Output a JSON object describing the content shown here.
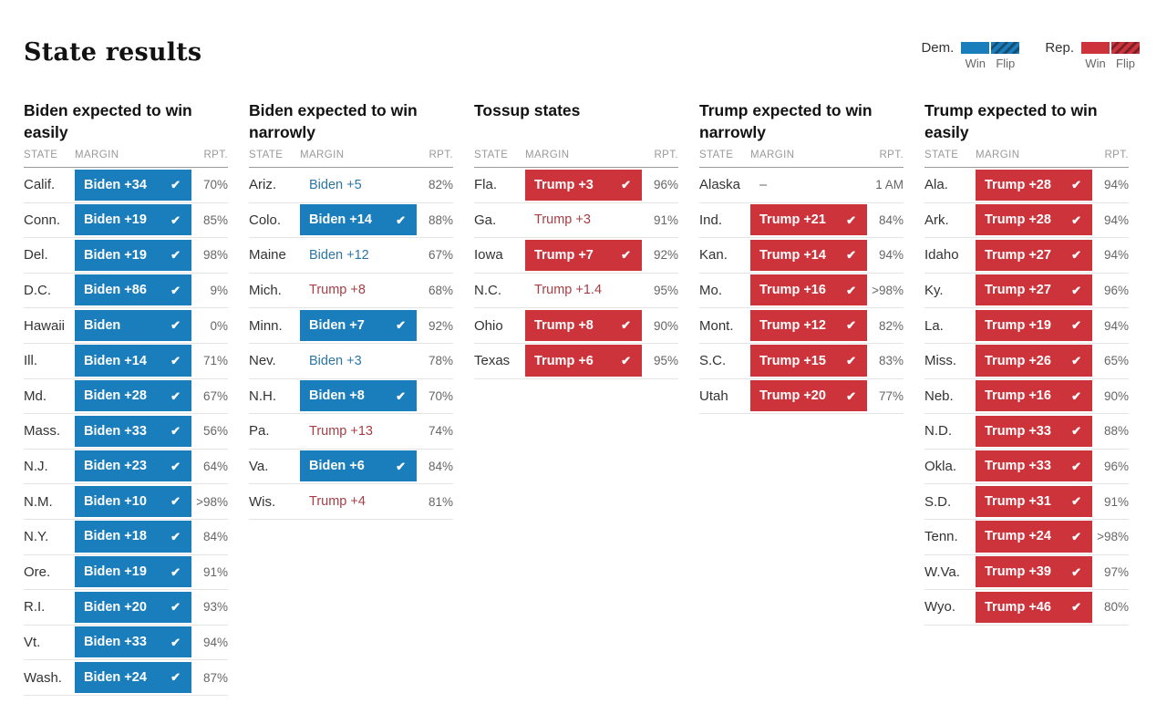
{
  "page_title": "State results",
  "legend": {
    "dem": {
      "label": "Dem.",
      "win": "Win",
      "flip": "Flip"
    },
    "rep": {
      "label": "Rep.",
      "win": "Win",
      "flip": "Flip"
    }
  },
  "colors": {
    "dem_fill": "#1a7dbc",
    "dem_text": "#2d76a4",
    "dem_flip_stripe": "#174e73",
    "rep_fill": "#cd333b",
    "rep_text": "#a63d45",
    "rep_flip_stripe": "#7d2027"
  },
  "table_headers": {
    "state": "STATE",
    "margin": "MARGIN",
    "rpt": "RPT."
  },
  "check_icon": "✔",
  "groups": [
    {
      "title": "Biden expected to win easily",
      "rows": [
        {
          "state": "Calif.",
          "margin": "Biden +34",
          "party": "dem",
          "called": true,
          "rpt": "70%"
        },
        {
          "state": "Conn.",
          "margin": "Biden +19",
          "party": "dem",
          "called": true,
          "rpt": "85%"
        },
        {
          "state": "Del.",
          "margin": "Biden +19",
          "party": "dem",
          "called": true,
          "rpt": "98%"
        },
        {
          "state": "D.C.",
          "margin": "Biden +86",
          "party": "dem",
          "called": true,
          "rpt": "9%"
        },
        {
          "state": "Hawaii",
          "margin": "Biden",
          "party": "dem",
          "called": true,
          "rpt": "0%"
        },
        {
          "state": "Ill.",
          "margin": "Biden +14",
          "party": "dem",
          "called": true,
          "rpt": "71%"
        },
        {
          "state": "Md.",
          "margin": "Biden +28",
          "party": "dem",
          "called": true,
          "rpt": "67%"
        },
        {
          "state": "Mass.",
          "margin": "Biden +33",
          "party": "dem",
          "called": true,
          "rpt": "56%"
        },
        {
          "state": "N.J.",
          "margin": "Biden +23",
          "party": "dem",
          "called": true,
          "rpt": "64%"
        },
        {
          "state": "N.M.",
          "margin": "Biden +10",
          "party": "dem",
          "called": true,
          "rpt": ">98%"
        },
        {
          "state": "N.Y.",
          "margin": "Biden +18",
          "party": "dem",
          "called": true,
          "rpt": "84%"
        },
        {
          "state": "Ore.",
          "margin": "Biden +19",
          "party": "dem",
          "called": true,
          "rpt": "91%"
        },
        {
          "state": "R.I.",
          "margin": "Biden +20",
          "party": "dem",
          "called": true,
          "rpt": "93%"
        },
        {
          "state": "Vt.",
          "margin": "Biden +33",
          "party": "dem",
          "called": true,
          "rpt": "94%"
        },
        {
          "state": "Wash.",
          "margin": "Biden +24",
          "party": "dem",
          "called": true,
          "rpt": "87%"
        }
      ]
    },
    {
      "title": "Biden expected to win narrowly",
      "rows": [
        {
          "state": "Ariz.",
          "margin": "Biden +5",
          "party": "dem",
          "called": false,
          "rpt": "82%"
        },
        {
          "state": "Colo.",
          "margin": "Biden +14",
          "party": "dem",
          "called": true,
          "rpt": "88%"
        },
        {
          "state": "Maine",
          "margin": "Biden +12",
          "party": "dem",
          "called": false,
          "rpt": "67%"
        },
        {
          "state": "Mich.",
          "margin": "Trump +8",
          "party": "rep",
          "called": false,
          "rpt": "68%"
        },
        {
          "state": "Minn.",
          "margin": "Biden +7",
          "party": "dem",
          "called": true,
          "rpt": "92%"
        },
        {
          "state": "Nev.",
          "margin": "Biden +3",
          "party": "dem",
          "called": false,
          "rpt": "78%"
        },
        {
          "state": "N.H.",
          "margin": "Biden +8",
          "party": "dem",
          "called": true,
          "rpt": "70%"
        },
        {
          "state": "Pa.",
          "margin": "Trump +13",
          "party": "rep",
          "called": false,
          "rpt": "74%"
        },
        {
          "state": "Va.",
          "margin": "Biden +6",
          "party": "dem",
          "called": true,
          "rpt": "84%"
        },
        {
          "state": "Wis.",
          "margin": "Trump +4",
          "party": "rep",
          "called": false,
          "rpt": "81%"
        }
      ]
    },
    {
      "title": "Tossup states",
      "rows": [
        {
          "state": "Fla.",
          "margin": "Trump +3",
          "party": "rep",
          "called": true,
          "rpt": "96%"
        },
        {
          "state": "Ga.",
          "margin": "Trump +3",
          "party": "rep",
          "called": false,
          "rpt": "91%"
        },
        {
          "state": "Iowa",
          "margin": "Trump +7",
          "party": "rep",
          "called": true,
          "rpt": "92%"
        },
        {
          "state": "N.C.",
          "margin": "Trump +1.4",
          "party": "rep",
          "called": false,
          "rpt": "95%"
        },
        {
          "state": "Ohio",
          "margin": "Trump +8",
          "party": "rep",
          "called": true,
          "rpt": "90%"
        },
        {
          "state": "Texas",
          "margin": "Trump +6",
          "party": "rep",
          "called": true,
          "rpt": "95%"
        }
      ]
    },
    {
      "title": "Trump expected to win narrowly",
      "rows": [
        {
          "state": "Alaska",
          "margin": "–",
          "party": "none",
          "called": false,
          "rpt": "1 AM"
        },
        {
          "state": "Ind.",
          "margin": "Trump +21",
          "party": "rep",
          "called": true,
          "rpt": "84%"
        },
        {
          "state": "Kan.",
          "margin": "Trump +14",
          "party": "rep",
          "called": true,
          "rpt": "94%"
        },
        {
          "state": "Mo.",
          "margin": "Trump +16",
          "party": "rep",
          "called": true,
          "rpt": ">98%"
        },
        {
          "state": "Mont.",
          "margin": "Trump +12",
          "party": "rep",
          "called": true,
          "rpt": "82%"
        },
        {
          "state": "S.C.",
          "margin": "Trump +15",
          "party": "rep",
          "called": true,
          "rpt": "83%"
        },
        {
          "state": "Utah",
          "margin": "Trump +20",
          "party": "rep",
          "called": true,
          "rpt": "77%"
        }
      ]
    },
    {
      "title": "Trump expected to win easily",
      "rows": [
        {
          "state": "Ala.",
          "margin": "Trump +28",
          "party": "rep",
          "called": true,
          "rpt": "94%"
        },
        {
          "state": "Ark.",
          "margin": "Trump +28",
          "party": "rep",
          "called": true,
          "rpt": "94%"
        },
        {
          "state": "Idaho",
          "margin": "Trump +27",
          "party": "rep",
          "called": true,
          "rpt": "94%"
        },
        {
          "state": "Ky.",
          "margin": "Trump +27",
          "party": "rep",
          "called": true,
          "rpt": "96%"
        },
        {
          "state": "La.",
          "margin": "Trump +19",
          "party": "rep",
          "called": true,
          "rpt": "94%"
        },
        {
          "state": "Miss.",
          "margin": "Trump +26",
          "party": "rep",
          "called": true,
          "rpt": "65%"
        },
        {
          "state": "Neb.",
          "margin": "Trump +16",
          "party": "rep",
          "called": true,
          "rpt": "90%"
        },
        {
          "state": "N.D.",
          "margin": "Trump +33",
          "party": "rep",
          "called": true,
          "rpt": "88%"
        },
        {
          "state": "Okla.",
          "margin": "Trump +33",
          "party": "rep",
          "called": true,
          "rpt": "96%"
        },
        {
          "state": "S.D.",
          "margin": "Trump +31",
          "party": "rep",
          "called": true,
          "rpt": "91%"
        },
        {
          "state": "Tenn.",
          "margin": "Trump +24",
          "party": "rep",
          "called": true,
          "rpt": ">98%"
        },
        {
          "state": "W.Va.",
          "margin": "Trump +39",
          "party": "rep",
          "called": true,
          "rpt": "97%"
        },
        {
          "state": "Wyo.",
          "margin": "Trump +46",
          "party": "rep",
          "called": true,
          "rpt": "80%"
        }
      ]
    }
  ]
}
